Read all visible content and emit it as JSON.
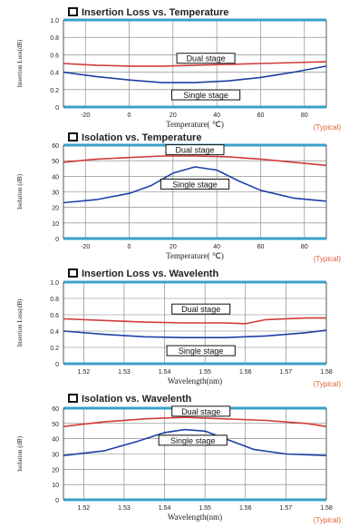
{
  "colors": {
    "dual": "#d23a3a",
    "single": "#1f3fa6",
    "frame": "#3aa0c8",
    "grid": "#7a7a7a",
    "typical": "#e0603a",
    "text": "#222222"
  },
  "chart_data": [
    {
      "type": "line",
      "title": "Insertion Loss vs. Temperature",
      "xlabel": "Temperature( ℃)",
      "ylabel": "Insertion Loss(dB)",
      "note": "(Typical)",
      "xlim": [
        -30,
        90
      ],
      "ylim": [
        0,
        1.0
      ],
      "xticks": [
        "-20",
        "0",
        "20",
        "40",
        "60",
        "80"
      ],
      "xtick_values": [
        -20,
        0,
        20,
        40,
        60,
        80
      ],
      "yticks": [
        "0",
        "0.2",
        "0.4",
        "0.6",
        "0.8",
        "1.0"
      ],
      "ytick_values": [
        0,
        0.2,
        0.4,
        0.6,
        0.8,
        1.0
      ],
      "grid": true,
      "series": [
        {
          "name": "Dual stage",
          "color_key": "dual",
          "x": [
            -30,
            -15,
            0,
            15,
            30,
            45,
            60,
            75,
            90
          ],
          "y": [
            0.5,
            0.48,
            0.47,
            0.47,
            0.48,
            0.49,
            0.5,
            0.51,
            0.52
          ],
          "label_at": [
            35,
            0.56
          ]
        },
        {
          "name": "Single stage",
          "color_key": "single",
          "x": [
            -30,
            -15,
            0,
            15,
            30,
            45,
            60,
            75,
            90
          ],
          "y": [
            0.4,
            0.35,
            0.31,
            0.28,
            0.28,
            0.3,
            0.34,
            0.4,
            0.47
          ],
          "label_at": [
            35,
            0.14
          ]
        }
      ]
    },
    {
      "type": "line",
      "title": "Isolation vs. Temperature",
      "xlabel": "Temperature( ℃)",
      "ylabel": "Isolation (dB)",
      "note": "(Typical)",
      "xlim": [
        -30,
        90
      ],
      "ylim": [
        0,
        60
      ],
      "xticks": [
        "-20",
        "0",
        "20",
        "40",
        "60",
        "80"
      ],
      "xtick_values": [
        -20,
        0,
        20,
        40,
        60,
        80
      ],
      "yticks": [
        "0",
        "10",
        "20",
        "30",
        "40",
        "50",
        "60"
      ],
      "ytick_values": [
        0,
        10,
        20,
        30,
        40,
        50,
        60
      ],
      "grid": true,
      "series": [
        {
          "name": "Dual stage",
          "color_key": "dual",
          "x": [
            -30,
            -15,
            0,
            15,
            30,
            45,
            60,
            75,
            90
          ],
          "y": [
            49,
            51,
            52,
            53,
            53,
            52.5,
            51,
            49,
            47
          ],
          "label_at": [
            30,
            57
          ]
        },
        {
          "name": "Single stage",
          "color_key": "single",
          "x": [
            -30,
            -15,
            0,
            10,
            20,
            30,
            40,
            50,
            60,
            75,
            90
          ],
          "y": [
            23,
            25,
            29,
            34,
            42,
            46,
            44,
            37,
            31,
            26,
            24
          ],
          "label_at": [
            30,
            35
          ]
        }
      ]
    },
    {
      "type": "line",
      "title": "Insertion Loss vs. Wavelenth",
      "xlabel": "Wavelength(nm)",
      "ylabel": "Insertion Loss(dB)",
      "note": "(Typical)",
      "xlim": [
        1.515,
        1.58
      ],
      "ylim": [
        0,
        1.0
      ],
      "xticks": [
        "1.52",
        "1.53",
        "1.54",
        "1.55",
        "1.56",
        "1.57",
        "1.58"
      ],
      "xtick_values": [
        1.52,
        1.53,
        1.54,
        1.55,
        1.56,
        1.57,
        1.58
      ],
      "yticks": [
        "0",
        "0.2",
        "0.4",
        "0.6",
        "0.8",
        "1.0"
      ],
      "ytick_values": [
        0,
        0.2,
        0.4,
        0.6,
        0.8,
        1.0
      ],
      "grid": true,
      "series": [
        {
          "name": "Dual stage",
          "color_key": "dual",
          "x": [
            1.515,
            1.525,
            1.535,
            1.545,
            1.555,
            1.56,
            1.565,
            1.575,
            1.58
          ],
          "y": [
            0.55,
            0.53,
            0.51,
            0.5,
            0.5,
            0.49,
            0.54,
            0.56,
            0.56
          ],
          "label_at": [
            1.549,
            0.67
          ]
        },
        {
          "name": "Single stage",
          "color_key": "single",
          "x": [
            1.515,
            1.525,
            1.535,
            1.545,
            1.555,
            1.565,
            1.575,
            1.58
          ],
          "y": [
            0.4,
            0.36,
            0.33,
            0.32,
            0.32,
            0.34,
            0.38,
            0.41
          ],
          "label_at": [
            1.549,
            0.16
          ]
        }
      ]
    },
    {
      "type": "line",
      "title": "Isolation vs. Wavelenth",
      "xlabel": "Wavelength(nm)",
      "ylabel": "Isolation (dB)",
      "note": "(Typical)",
      "xlim": [
        1.515,
        1.58
      ],
      "ylim": [
        0,
        60
      ],
      "xticks": [
        "1.52",
        "1.53",
        "1.54",
        "1.55",
        "1.56",
        "1.57",
        "1.58"
      ],
      "xtick_values": [
        1.52,
        1.53,
        1.54,
        1.55,
        1.56,
        1.57,
        1.58
      ],
      "yticks": [
        "0",
        "10",
        "20",
        "30",
        "40",
        "50",
        "60"
      ],
      "ytick_values": [
        0,
        10,
        20,
        30,
        40,
        50,
        60
      ],
      "grid": true,
      "series": [
        {
          "name": "Dual stage",
          "color_key": "dual",
          "x": [
            1.515,
            1.525,
            1.535,
            1.545,
            1.555,
            1.565,
            1.575,
            1.58
          ],
          "y": [
            48,
            51,
            53,
            54,
            53,
            52,
            50,
            48
          ],
          "label_at": [
            1.549,
            58
          ]
        },
        {
          "name": "Single stage",
          "color_key": "single",
          "x": [
            1.515,
            1.525,
            1.533,
            1.54,
            1.545,
            1.55,
            1.555,
            1.562,
            1.57,
            1.58
          ],
          "y": [
            29,
            32,
            38,
            44,
            46,
            45,
            40,
            33,
            30,
            29
          ],
          "label_at": [
            1.547,
            39
          ]
        }
      ]
    }
  ]
}
